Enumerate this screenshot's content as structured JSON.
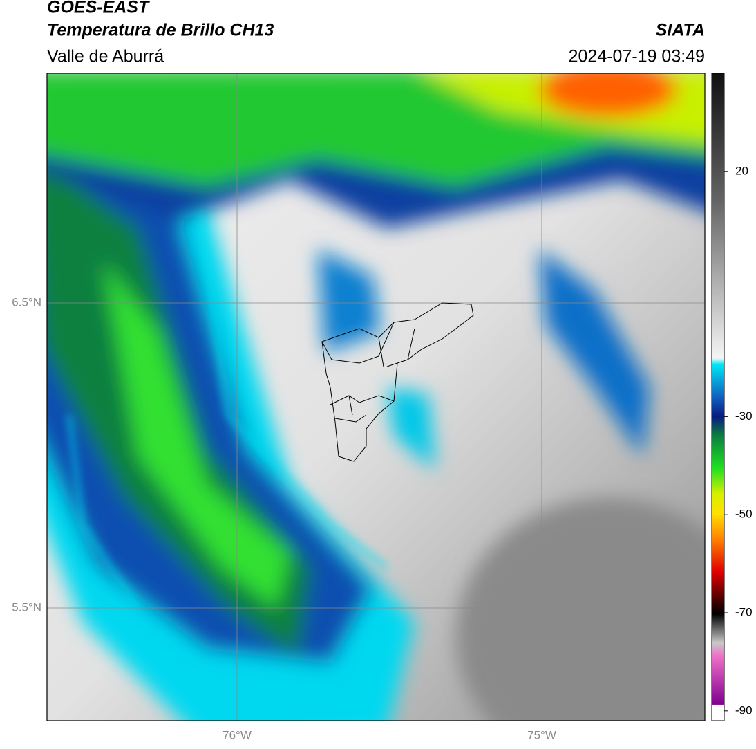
{
  "header": {
    "satellite": "GOES-EAST",
    "product": "Temperatura de Brillo CH13",
    "region": "Valle de Aburrá",
    "source": "SIATA",
    "datetime": "2024-07-19 03:49"
  },
  "map": {
    "lat_labels": [
      "6.5°N",
      "5.5°N"
    ],
    "lon_labels": [
      "76°W",
      "75°W"
    ]
  },
  "colorbar": {
    "lim": [
      -92,
      40
    ],
    "ticks": [
      20,
      -30,
      -50,
      -70,
      -90
    ]
  }
}
